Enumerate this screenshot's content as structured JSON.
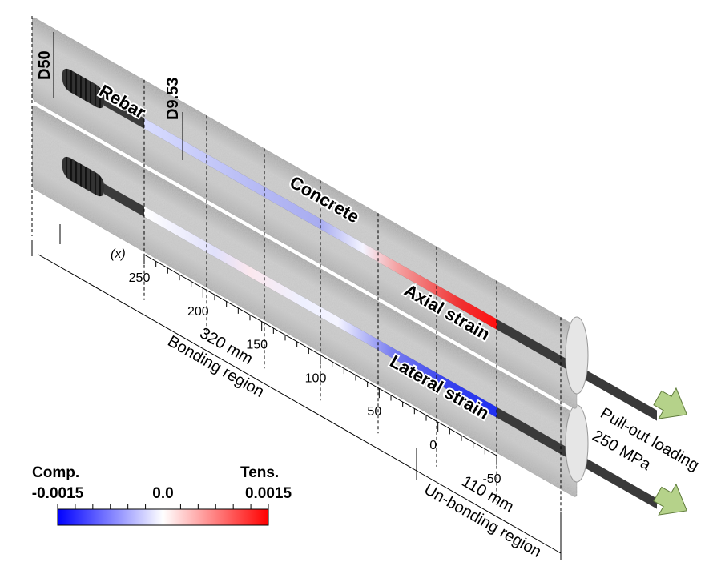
{
  "labels": {
    "diameter_concrete": "D50",
    "diameter_rebar": "D9.53",
    "rebar": "Rebar",
    "concrete": "Concrete",
    "axial": "Axial strain",
    "lateral": "Lateral strain"
  },
  "axis": {
    "name": "(x)",
    "ticks": [
      "250",
      "200",
      "150",
      "100",
      "50",
      "0",
      "-50"
    ]
  },
  "dimensions": {
    "bonding_length": "320 mm",
    "bonding": "Bonding region",
    "unbonding_length": "110 mm",
    "unbonding": "Un-bonding region"
  },
  "loading": {
    "label": "Pull-out loading",
    "magnitude": "250 MPa"
  },
  "colorbar": {
    "min_label": "Comp.",
    "max_label": "Tens.",
    "ticks": [
      "-0.0015",
      "0.0",
      "0.0015"
    ]
  }
}
